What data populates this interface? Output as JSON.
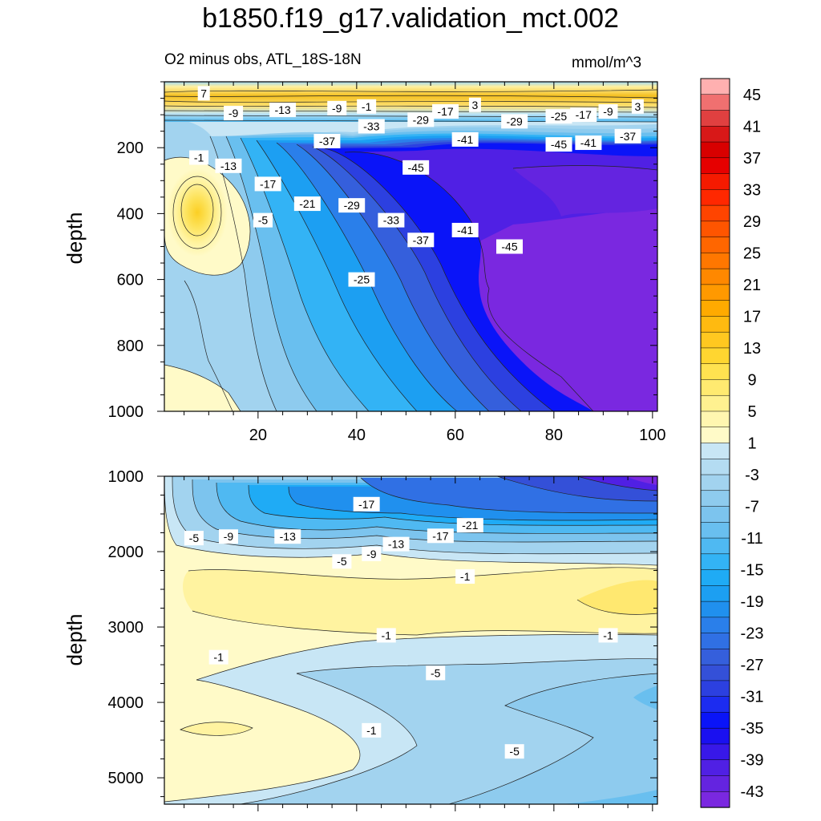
{
  "figure_title": "b1850.f19_g17.validation_mct.002",
  "top_panel": {
    "left_subtitle": "O2 minus obs, ATL_18S-18N",
    "right_subtitle": "mmol/m^3",
    "ylabel": "depth"
  },
  "bottom_panel": {
    "ylabel": "depth"
  },
  "chart_data": [
    {
      "type": "heatmap",
      "title": "O2 minus obs, ATL_18S-18N",
      "units": "mmol/m^3",
      "ylabel": "depth",
      "xlim": [
        1,
        101
      ],
      "ylim": [
        1000,
        0
      ],
      "x_ticks": [
        20,
        40,
        60,
        80,
        100
      ],
      "y_ticks": [
        200,
        400,
        600,
        800,
        1000
      ],
      "contour_labels": [
        {
          "x": 9,
          "y": 35,
          "v": "7"
        },
        {
          "x": 15,
          "y": 95,
          "v": "-9"
        },
        {
          "x": 25,
          "y": 85,
          "v": "-13"
        },
        {
          "x": 36,
          "y": 80,
          "v": "-9"
        },
        {
          "x": 42,
          "y": 75,
          "v": "-1"
        },
        {
          "x": 58,
          "y": 90,
          "v": "-17"
        },
        {
          "x": 64,
          "y": 70,
          "v": "3"
        },
        {
          "x": 72,
          "y": 120,
          "v": "-29"
        },
        {
          "x": 53,
          "y": 115,
          "v": "-29"
        },
        {
          "x": 43,
          "y": 135,
          "v": "-33"
        },
        {
          "x": 34,
          "y": 180,
          "v": "-37"
        },
        {
          "x": 8,
          "y": 230,
          "v": "-1"
        },
        {
          "x": 14,
          "y": 255,
          "v": "-13"
        },
        {
          "x": 22,
          "y": 310,
          "v": "-17"
        },
        {
          "x": 52,
          "y": 260,
          "v": "-45"
        },
        {
          "x": 62,
          "y": 175,
          "v": "-41"
        },
        {
          "x": 81,
          "y": 105,
          "v": "-25"
        },
        {
          "x": 86,
          "y": 100,
          "v": "-17"
        },
        {
          "x": 91,
          "y": 90,
          "v": "-9"
        },
        {
          "x": 97,
          "y": 75,
          "v": "3"
        },
        {
          "x": 81,
          "y": 190,
          "v": "-45"
        },
        {
          "x": 87,
          "y": 185,
          "v": "-41"
        },
        {
          "x": 95,
          "y": 165,
          "v": "-37"
        },
        {
          "x": 30,
          "y": 370,
          "v": "-21"
        },
        {
          "x": 39,
          "y": 375,
          "v": "-29"
        },
        {
          "x": 47,
          "y": 420,
          "v": "-33"
        },
        {
          "x": 21,
          "y": 420,
          "v": "-5"
        },
        {
          "x": 53,
          "y": 480,
          "v": "-37"
        },
        {
          "x": 62,
          "y": 450,
          "v": "-41"
        },
        {
          "x": 71,
          "y": 500,
          "v": "-45"
        },
        {
          "x": 41,
          "y": 600,
          "v": "-25"
        }
      ]
    },
    {
      "type": "heatmap",
      "ylabel": "depth",
      "xlim": [
        1,
        101
      ],
      "ylim": [
        5350,
        1000
      ],
      "y_ticks": [
        1000,
        2000,
        3000,
        4000,
        5000
      ],
      "contour_labels": [
        {
          "x": 42,
          "y": 1370,
          "v": "-17"
        },
        {
          "x": 63,
          "y": 1650,
          "v": "-21"
        },
        {
          "x": 7,
          "y": 1820,
          "v": "-5"
        },
        {
          "x": 14,
          "y": 1800,
          "v": "-9"
        },
        {
          "x": 26,
          "y": 1800,
          "v": "-13"
        },
        {
          "x": 57,
          "y": 1790,
          "v": "-17"
        },
        {
          "x": 48,
          "y": 1900,
          "v": "-13"
        },
        {
          "x": 43,
          "y": 2030,
          "v": "-9"
        },
        {
          "x": 37,
          "y": 2130,
          "v": "-5"
        },
        {
          "x": 62,
          "y": 2330,
          "v": "-1"
        },
        {
          "x": 46,
          "y": 3110,
          "v": "-1"
        },
        {
          "x": 91,
          "y": 3110,
          "v": "-1"
        },
        {
          "x": 12,
          "y": 3400,
          "v": "-1"
        },
        {
          "x": 56,
          "y": 3610,
          "v": "-5"
        },
        {
          "x": 43,
          "y": 4370,
          "v": "-1"
        },
        {
          "x": 72,
          "y": 4650,
          "v": "-5"
        }
      ]
    }
  ],
  "colorbar": {
    "labels": [
      "45",
      "41",
      "37",
      "33",
      "29",
      "25",
      "21",
      "17",
      "13",
      "9",
      "5",
      "1",
      "-3",
      "-7",
      "-11",
      "-15",
      "-19",
      "-23",
      "-27",
      "-31",
      "-35",
      "-39",
      "-43"
    ],
    "colors": [
      "#ffb0b0",
      "#f07070",
      "#e04040",
      "#d81818",
      "#d80000",
      "#e60000",
      "#f51a00",
      "#ff2800",
      "#ff4400",
      "#ff5500",
      "#ff6600",
      "#ff7700",
      "#ff8800",
      "#ff9900",
      "#ffaa00",
      "#ffba10",
      "#ffc820",
      "#ffd630",
      "#ffe250",
      "#ffea70",
      "#fff190",
      "#fff6b0",
      "#fffac8",
      "#c8e6f5",
      "#b4dcf2",
      "#a2d3ef",
      "#8ecbee",
      "#7cc4ee",
      "#69bfef",
      "#4fb9f2",
      "#33b3f5",
      "#1fabf5",
      "#1c9ff2",
      "#2090ee",
      "#2a7fea",
      "#3070e4",
      "#355fdc",
      "#3450d8",
      "#2c40e0",
      "#1c2cf0",
      "#0a14f8",
      "#1a10f0",
      "#3818e8",
      "#5020e4",
      "#6424e0",
      "#7a28e0"
    ]
  }
}
